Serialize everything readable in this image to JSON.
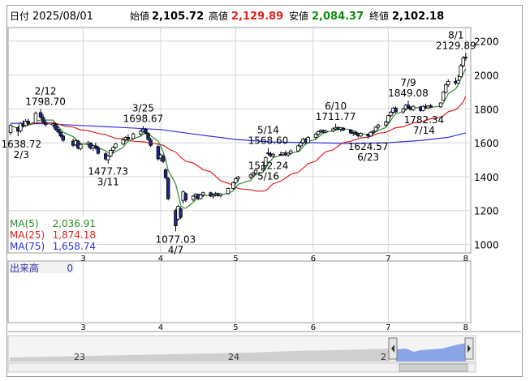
{
  "header": {
    "date_label": "日付",
    "date": "2025/08/01",
    "open_label": "始値",
    "open": "2,105.72",
    "high_label": "高値",
    "high": "2,129.89",
    "low_label": "安値",
    "low": "2,084.37",
    "close_label": "終値",
    "close": "2,102.18"
  },
  "colors": {
    "up_fill": "#ffffff",
    "down_fill": "#1a2a8c",
    "candle_stroke": "#000000",
    "ma5": "#2e8b2e",
    "ma25": "#e02020",
    "ma75": "#3030e0",
    "header_high": "#e02020",
    "header_low": "#108a10",
    "grid": "#d4d4d4",
    "navigator_fill": "#8aa4e8"
  },
  "legend": [
    {
      "name": "MA(5)",
      "value": "2,036.91",
      "color": "#2e8b2e"
    },
    {
      "name": "MA(25)",
      "value": "1,874.18",
      "color": "#e02020"
    },
    {
      "name": "MA(75)",
      "value": "1,658.74",
      "color": "#3030e0"
    }
  ],
  "volume": {
    "label": "出来高",
    "value": "0"
  },
  "navigator": {
    "labels": [
      "23",
      "24",
      "2"
    ]
  },
  "chart_data": {
    "type": "candlestick",
    "ylim": [
      950,
      2280
    ],
    "y_ticks": [
      1000,
      1200,
      1400,
      1600,
      1800,
      2000,
      2200
    ],
    "x_tick_labels": [
      "3",
      "4",
      "5",
      "6",
      "7",
      "8"
    ],
    "x_tick_dates": [
      "2025-03-01",
      "2025-04-01",
      "2025-05-01",
      "2025-06-01",
      "2025-07-01",
      "2025-08-01"
    ],
    "annotations": [
      {
        "date": "2025-02-03",
        "value": 1638.72,
        "text": "1638.72",
        "date_text": "2/3",
        "pos": "below"
      },
      {
        "date": "2025-02-12",
        "value": 1798.7,
        "text": "1798.70",
        "date_text": "2/12",
        "pos": "above"
      },
      {
        "date": "2025-03-11",
        "value": 1477.73,
        "text": "1477.73",
        "date_text": "3/11",
        "pos": "below"
      },
      {
        "date": "2025-03-25",
        "value": 1698.67,
        "text": "1698.67",
        "date_text": "3/25",
        "pos": "above"
      },
      {
        "date": "2025-04-07",
        "value": 1077.03,
        "text": "1077.03",
        "date_text": "4/7",
        "pos": "below"
      },
      {
        "date": "2025-05-14",
        "value": 1568.6,
        "text": "1568.60",
        "date_text": "5/14",
        "pos": "above"
      },
      {
        "date": "2025-05-16",
        "value": 1512.24,
        "text": "1512.24",
        "date_text": "5/16",
        "pos": "below"
      },
      {
        "date": "2025-06-10",
        "value": 1711.77,
        "text": "1711.77",
        "date_text": "6/10",
        "pos": "above"
      },
      {
        "date": "2025-06-23",
        "value": 1624.57,
        "text": "1624.57",
        "date_text": "6/23",
        "pos": "below"
      },
      {
        "date": "2025-07-09",
        "value": 1849.08,
        "text": "1849.08",
        "date_text": "7/9",
        "pos": "above"
      },
      {
        "date": "2025-07-14",
        "value": 1782.34,
        "text": "1782.34",
        "date_text": "7/14",
        "pos": "below"
      },
      {
        "date": "2025-08-01",
        "value": 2129.89,
        "text": "2129.89",
        "date_text": "8/1",
        "pos": "above"
      }
    ],
    "candles": [
      {
        "d": "2025-01-31",
        "o": 1660,
        "h": 1712,
        "l": 1645,
        "c": 1702
      },
      {
        "d": "2025-02-03",
        "o": 1690,
        "h": 1700,
        "l": 1638.72,
        "c": 1668
      },
      {
        "d": "2025-02-04",
        "o": 1670,
        "h": 1722,
        "l": 1660,
        "c": 1715
      },
      {
        "d": "2025-02-05",
        "o": 1712,
        "h": 1732,
        "l": 1690,
        "c": 1700
      },
      {
        "d": "2025-02-06",
        "o": 1702,
        "h": 1740,
        "l": 1695,
        "c": 1728
      },
      {
        "d": "2025-02-07",
        "o": 1728,
        "h": 1742,
        "l": 1700,
        "c": 1715
      },
      {
        "d": "2025-02-10",
        "o": 1715,
        "h": 1785,
        "l": 1710,
        "c": 1775
      },
      {
        "d": "2025-02-12",
        "o": 1778,
        "h": 1798.7,
        "l": 1740,
        "c": 1752
      },
      {
        "d": "2025-02-13",
        "o": 1750,
        "h": 1768,
        "l": 1710,
        "c": 1722
      },
      {
        "d": "2025-02-14",
        "o": 1720,
        "h": 1735,
        "l": 1695,
        "c": 1708
      },
      {
        "d": "2025-02-17",
        "o": 1705,
        "h": 1722,
        "l": 1690,
        "c": 1712
      },
      {
        "d": "2025-02-18",
        "o": 1710,
        "h": 1718,
        "l": 1672,
        "c": 1680
      },
      {
        "d": "2025-02-19",
        "o": 1680,
        "h": 1695,
        "l": 1655,
        "c": 1664
      },
      {
        "d": "2025-02-20",
        "o": 1662,
        "h": 1675,
        "l": 1630,
        "c": 1640
      },
      {
        "d": "2025-02-21",
        "o": 1640,
        "h": 1650,
        "l": 1605,
        "c": 1615
      },
      {
        "d": "2025-02-25",
        "o": 1610,
        "h": 1625,
        "l": 1575,
        "c": 1585
      },
      {
        "d": "2025-02-26",
        "o": 1588,
        "h": 1622,
        "l": 1580,
        "c": 1612
      },
      {
        "d": "2025-02-27",
        "o": 1610,
        "h": 1618,
        "l": 1560,
        "c": 1568
      },
      {
        "d": "2025-02-28",
        "o": 1565,
        "h": 1598,
        "l": 1555,
        "c": 1590
      },
      {
        "d": "2025-03-03",
        "o": 1590,
        "h": 1612,
        "l": 1572,
        "c": 1600
      },
      {
        "d": "2025-03-04",
        "o": 1598,
        "h": 1604,
        "l": 1560,
        "c": 1568
      },
      {
        "d": "2025-03-05",
        "o": 1568,
        "h": 1590,
        "l": 1552,
        "c": 1582
      },
      {
        "d": "2025-03-06",
        "o": 1582,
        "h": 1600,
        "l": 1560,
        "c": 1570
      },
      {
        "d": "2025-03-07",
        "o": 1570,
        "h": 1582,
        "l": 1530,
        "c": 1538
      },
      {
        "d": "2025-03-10",
        "o": 1535,
        "h": 1545,
        "l": 1495,
        "c": 1505
      },
      {
        "d": "2025-03-11",
        "o": 1500,
        "h": 1528,
        "l": 1477.73,
        "c": 1522
      },
      {
        "d": "2025-03-12",
        "o": 1522,
        "h": 1560,
        "l": 1515,
        "c": 1555
      },
      {
        "d": "2025-03-13",
        "o": 1555,
        "h": 1580,
        "l": 1540,
        "c": 1572
      },
      {
        "d": "2025-03-14",
        "o": 1572,
        "h": 1600,
        "l": 1565,
        "c": 1594
      },
      {
        "d": "2025-03-17",
        "o": 1594,
        "h": 1625,
        "l": 1585,
        "c": 1618
      },
      {
        "d": "2025-03-18",
        "o": 1618,
        "h": 1640,
        "l": 1605,
        "c": 1632
      },
      {
        "d": "2025-03-19",
        "o": 1632,
        "h": 1650,
        "l": 1612,
        "c": 1622
      },
      {
        "d": "2025-03-21",
        "o": 1624,
        "h": 1660,
        "l": 1618,
        "c": 1652
      },
      {
        "d": "2025-03-24",
        "o": 1652,
        "h": 1678,
        "l": 1640,
        "c": 1668
      },
      {
        "d": "2025-03-25",
        "o": 1668,
        "h": 1698.67,
        "l": 1660,
        "c": 1680
      },
      {
        "d": "2025-03-26",
        "o": 1680,
        "h": 1688,
        "l": 1650,
        "c": 1658
      },
      {
        "d": "2025-03-27",
        "o": 1655,
        "h": 1662,
        "l": 1612,
        "c": 1620
      },
      {
        "d": "2025-03-28",
        "o": 1618,
        "h": 1630,
        "l": 1575,
        "c": 1585
      },
      {
        "d": "2025-03-31",
        "o": 1578,
        "h": 1588,
        "l": 1495,
        "c": 1505
      },
      {
        "d": "2025-04-01",
        "o": 1510,
        "h": 1538,
        "l": 1490,
        "c": 1528
      },
      {
        "d": "2025-04-02",
        "o": 1520,
        "h": 1530,
        "l": 1480,
        "c": 1490
      },
      {
        "d": "2025-04-03",
        "o": 1440,
        "h": 1450,
        "l": 1385,
        "c": 1395
      },
      {
        "d": "2025-04-04",
        "o": 1390,
        "h": 1398,
        "l": 1260,
        "c": 1270
      },
      {
        "d": "2025-04-07",
        "o": 1200,
        "h": 1210,
        "l": 1077.03,
        "c": 1110
      },
      {
        "d": "2025-04-08",
        "o": 1150,
        "h": 1235,
        "l": 1140,
        "c": 1225
      },
      {
        "d": "2025-04-09",
        "o": 1210,
        "h": 1222,
        "l": 1150,
        "c": 1160
      },
      {
        "d": "2025-04-10",
        "o": 1260,
        "h": 1320,
        "l": 1240,
        "c": 1310
      },
      {
        "d": "2025-04-11",
        "o": 1300,
        "h": 1308,
        "l": 1250,
        "c": 1262
      },
      {
        "d": "2025-04-14",
        "o": 1265,
        "h": 1292,
        "l": 1255,
        "c": 1285
      },
      {
        "d": "2025-04-15",
        "o": 1285,
        "h": 1302,
        "l": 1270,
        "c": 1296
      },
      {
        "d": "2025-04-16",
        "o": 1296,
        "h": 1300,
        "l": 1262,
        "c": 1270
      },
      {
        "d": "2025-04-17",
        "o": 1270,
        "h": 1298,
        "l": 1265,
        "c": 1292
      },
      {
        "d": "2025-04-18",
        "o": 1292,
        "h": 1312,
        "l": 1280,
        "c": 1305
      },
      {
        "d": "2025-04-21",
        "o": 1305,
        "h": 1312,
        "l": 1280,
        "c": 1286
      },
      {
        "d": "2025-04-22",
        "o": 1285,
        "h": 1300,
        "l": 1270,
        "c": 1292
      },
      {
        "d": "2025-04-23",
        "o": 1294,
        "h": 1310,
        "l": 1283,
        "c": 1300
      },
      {
        "d": "2025-04-24",
        "o": 1300,
        "h": 1306,
        "l": 1282,
        "c": 1288
      },
      {
        "d": "2025-04-25",
        "o": 1288,
        "h": 1302,
        "l": 1278,
        "c": 1298
      },
      {
        "d": "2025-04-28",
        "o": 1300,
        "h": 1335,
        "l": 1295,
        "c": 1330
      },
      {
        "d": "2025-04-30",
        "o": 1330,
        "h": 1372,
        "l": 1322,
        "c": 1365
      },
      {
        "d": "2025-05-01",
        "o": 1365,
        "h": 1395,
        "l": 1355,
        "c": 1388
      },
      {
        "d": "2025-05-02",
        "o": 1388,
        "h": 1405,
        "l": 1372,
        "c": 1398
      },
      {
        "d": "2025-05-07",
        "o": 1398,
        "h": 1418,
        "l": 1385,
        "c": 1410
      },
      {
        "d": "2025-05-08",
        "o": 1410,
        "h": 1430,
        "l": 1398,
        "c": 1422
      },
      {
        "d": "2025-05-09",
        "o": 1422,
        "h": 1445,
        "l": 1410,
        "c": 1438
      },
      {
        "d": "2025-05-12",
        "o": 1438,
        "h": 1472,
        "l": 1430,
        "c": 1465
      },
      {
        "d": "2025-05-13",
        "o": 1465,
        "h": 1520,
        "l": 1458,
        "c": 1512
      },
      {
        "d": "2025-05-14",
        "o": 1540,
        "h": 1568.6,
        "l": 1525,
        "c": 1535
      },
      {
        "d": "2025-05-15",
        "o": 1535,
        "h": 1548,
        "l": 1515,
        "c": 1522
      },
      {
        "d": "2025-05-16",
        "o": 1522,
        "h": 1540,
        "l": 1512.24,
        "c": 1532
      },
      {
        "d": "2025-05-19",
        "o": 1532,
        "h": 1548,
        "l": 1522,
        "c": 1530
      },
      {
        "d": "2025-05-20",
        "o": 1530,
        "h": 1545,
        "l": 1520,
        "c": 1540
      },
      {
        "d": "2025-05-21",
        "o": 1540,
        "h": 1555,
        "l": 1520,
        "c": 1528
      },
      {
        "d": "2025-05-22",
        "o": 1528,
        "h": 1545,
        "l": 1518,
        "c": 1538
      },
      {
        "d": "2025-05-23",
        "o": 1538,
        "h": 1560,
        "l": 1530,
        "c": 1552
      },
      {
        "d": "2025-05-26",
        "o": 1552,
        "h": 1590,
        "l": 1545,
        "c": 1582
      },
      {
        "d": "2025-05-27",
        "o": 1582,
        "h": 1610,
        "l": 1572,
        "c": 1600
      },
      {
        "d": "2025-05-28",
        "o": 1600,
        "h": 1630,
        "l": 1590,
        "c": 1622
      },
      {
        "d": "2025-05-29",
        "o": 1622,
        "h": 1628,
        "l": 1590,
        "c": 1600
      },
      {
        "d": "2025-05-30",
        "o": 1600,
        "h": 1640,
        "l": 1595,
        "c": 1632
      },
      {
        "d": "2025-06-02",
        "o": 1632,
        "h": 1660,
        "l": 1620,
        "c": 1650
      },
      {
        "d": "2025-06-03",
        "o": 1650,
        "h": 1672,
        "l": 1640,
        "c": 1665
      },
      {
        "d": "2025-06-04",
        "o": 1665,
        "h": 1682,
        "l": 1655,
        "c": 1672
      },
      {
        "d": "2025-06-05",
        "o": 1672,
        "h": 1680,
        "l": 1655,
        "c": 1662
      },
      {
        "d": "2025-06-06",
        "o": 1662,
        "h": 1678,
        "l": 1655,
        "c": 1670
      },
      {
        "d": "2025-06-09",
        "o": 1670,
        "h": 1690,
        "l": 1662,
        "c": 1682
      },
      {
        "d": "2025-06-10",
        "o": 1682,
        "h": 1711.77,
        "l": 1675,
        "c": 1690
      },
      {
        "d": "2025-06-11",
        "o": 1690,
        "h": 1698,
        "l": 1675,
        "c": 1680
      },
      {
        "d": "2025-06-12",
        "o": 1680,
        "h": 1692,
        "l": 1665,
        "c": 1688
      },
      {
        "d": "2025-06-13",
        "o": 1686,
        "h": 1694,
        "l": 1668,
        "c": 1675
      },
      {
        "d": "2025-06-16",
        "o": 1675,
        "h": 1680,
        "l": 1650,
        "c": 1658
      },
      {
        "d": "2025-06-17",
        "o": 1658,
        "h": 1668,
        "l": 1640,
        "c": 1660
      },
      {
        "d": "2025-06-18",
        "o": 1660,
        "h": 1672,
        "l": 1645,
        "c": 1650
      },
      {
        "d": "2025-06-19",
        "o": 1650,
        "h": 1658,
        "l": 1632,
        "c": 1640
      },
      {
        "d": "2025-06-20",
        "o": 1640,
        "h": 1662,
        "l": 1635,
        "c": 1656
      },
      {
        "d": "2025-06-23",
        "o": 1650,
        "h": 1655,
        "l": 1624.57,
        "c": 1640
      },
      {
        "d": "2025-06-24",
        "o": 1640,
        "h": 1668,
        "l": 1635,
        "c": 1662
      },
      {
        "d": "2025-06-25",
        "o": 1662,
        "h": 1675,
        "l": 1650,
        "c": 1668
      },
      {
        "d": "2025-06-26",
        "o": 1668,
        "h": 1698,
        "l": 1662,
        "c": 1692
      },
      {
        "d": "2025-06-27",
        "o": 1692,
        "h": 1712,
        "l": 1680,
        "c": 1705
      },
      {
        "d": "2025-06-30",
        "o": 1705,
        "h": 1730,
        "l": 1695,
        "c": 1722
      },
      {
        "d": "2025-07-01",
        "o": 1722,
        "h": 1765,
        "l": 1715,
        "c": 1760
      },
      {
        "d": "2025-07-02",
        "o": 1760,
        "h": 1788,
        "l": 1750,
        "c": 1780
      },
      {
        "d": "2025-07-03",
        "o": 1780,
        "h": 1812,
        "l": 1770,
        "c": 1805
      },
      {
        "d": "2025-07-04",
        "o": 1805,
        "h": 1815,
        "l": 1775,
        "c": 1782
      },
      {
        "d": "2025-07-07",
        "o": 1782,
        "h": 1808,
        "l": 1770,
        "c": 1800
      },
      {
        "d": "2025-07-08",
        "o": 1800,
        "h": 1830,
        "l": 1790,
        "c": 1822
      },
      {
        "d": "2025-07-09",
        "o": 1822,
        "h": 1849.08,
        "l": 1798,
        "c": 1808
      },
      {
        "d": "2025-07-10",
        "o": 1808,
        "h": 1815,
        "l": 1790,
        "c": 1796
      },
      {
        "d": "2025-07-11",
        "o": 1796,
        "h": 1822,
        "l": 1788,
        "c": 1815
      },
      {
        "d": "2025-07-14",
        "o": 1812,
        "h": 1818,
        "l": 1782.34,
        "c": 1790
      },
      {
        "d": "2025-07-15",
        "o": 1790,
        "h": 1822,
        "l": 1785,
        "c": 1815
      },
      {
        "d": "2025-07-16",
        "o": 1815,
        "h": 1830,
        "l": 1800,
        "c": 1806
      },
      {
        "d": "2025-07-17",
        "o": 1806,
        "h": 1822,
        "l": 1800,
        "c": 1818
      },
      {
        "d": "2025-07-18",
        "o": 1818,
        "h": 1830,
        "l": 1805,
        "c": 1812
      },
      {
        "d": "2025-07-22",
        "o": 1812,
        "h": 1840,
        "l": 1806,
        "c": 1835
      },
      {
        "d": "2025-07-23",
        "o": 1850,
        "h": 1905,
        "l": 1845,
        "c": 1898
      },
      {
        "d": "2025-07-24",
        "o": 1898,
        "h": 1950,
        "l": 1890,
        "c": 1942
      },
      {
        "d": "2025-07-25",
        "o": 1942,
        "h": 1975,
        "l": 1930,
        "c": 1962
      },
      {
        "d": "2025-07-28",
        "o": 1962,
        "h": 1985,
        "l": 1940,
        "c": 1952
      },
      {
        "d": "2025-07-29",
        "o": 1952,
        "h": 2000,
        "l": 1945,
        "c": 1968
      },
      {
        "d": "2025-07-30",
        "o": 1990,
        "h": 2065,
        "l": 1985,
        "c": 2055
      },
      {
        "d": "2025-07-31",
        "o": 2055,
        "h": 2112,
        "l": 2045,
        "c": 2100
      },
      {
        "d": "2025-08-01",
        "o": 2105.72,
        "h": 2129.89,
        "l": 2084.37,
        "c": 2102.18
      }
    ],
    "ma75": [
      {
        "d": "2025-01-31",
        "v": 1715
      },
      {
        "d": "2025-02-14",
        "v": 1712
      },
      {
        "d": "2025-03-03",
        "v": 1700
      },
      {
        "d": "2025-03-17",
        "v": 1690
      },
      {
        "d": "2025-04-01",
        "v": 1678
      },
      {
        "d": "2025-04-15",
        "v": 1650
      },
      {
        "d": "2025-05-01",
        "v": 1620
      },
      {
        "d": "2025-05-15",
        "v": 1605
      },
      {
        "d": "2025-06-02",
        "v": 1600
      },
      {
        "d": "2025-06-16",
        "v": 1596
      },
      {
        "d": "2025-07-01",
        "v": 1600
      },
      {
        "d": "2025-07-15",
        "v": 1615
      },
      {
        "d": "2025-07-25",
        "v": 1632
      },
      {
        "d": "2025-08-01",
        "v": 1658.74
      }
    ]
  }
}
